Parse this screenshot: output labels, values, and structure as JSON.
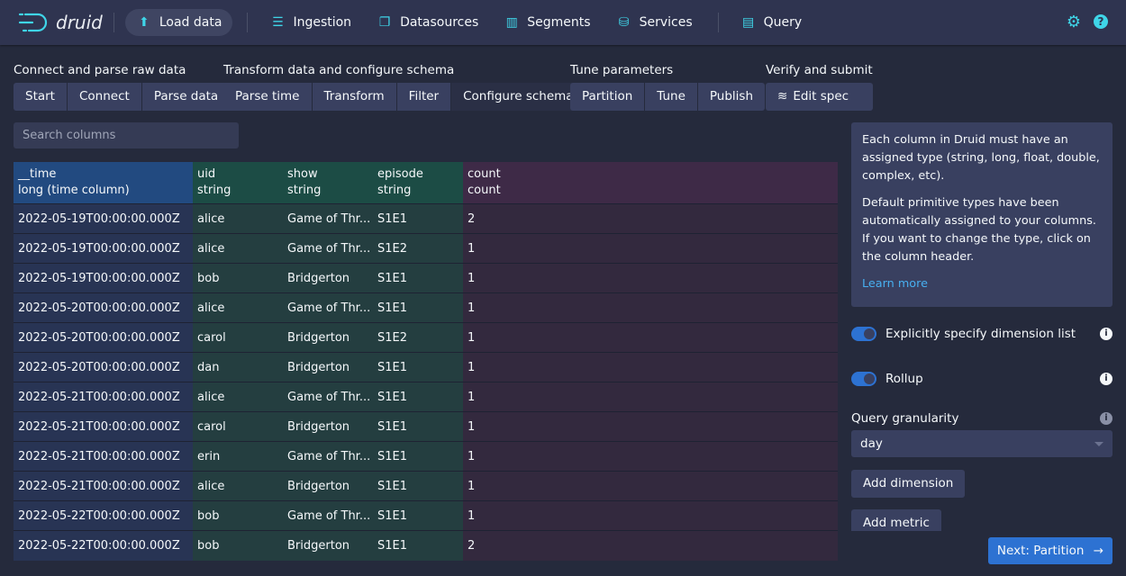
{
  "nav": {
    "logo": "druid",
    "items": [
      {
        "label": "Load data",
        "icon": "cloud-upload-icon",
        "active": true
      },
      {
        "label": "Ingestion",
        "icon": "gantt-chart-icon"
      },
      {
        "label": "Datasources",
        "icon": "multi-select-icon"
      },
      {
        "label": "Segments",
        "icon": "stacked-chart-icon"
      },
      {
        "label": "Services",
        "icon": "database-icon"
      },
      {
        "label": "Query",
        "icon": "application-icon"
      }
    ],
    "right_icons": [
      "cog-icon",
      "help-icon"
    ]
  },
  "steps": [
    {
      "title": "Connect and parse raw data",
      "buttons": [
        "Start",
        "Connect",
        "Parse data"
      ]
    },
    {
      "title": "Transform data and configure schema",
      "buttons": [
        "Parse time",
        "Transform",
        "Filter",
        "Configure schema"
      ],
      "selected": "Configure schema"
    },
    {
      "title": "Tune parameters",
      "buttons": [
        "Partition",
        "Tune",
        "Publish"
      ]
    },
    {
      "title": "Verify and submit",
      "buttons": [
        "Edit spec"
      ]
    }
  ],
  "search": {
    "placeholder": "Search columns"
  },
  "table": {
    "columns": [
      {
        "name": "__time",
        "type": "long (time column)"
      },
      {
        "name": "uid",
        "type": "string"
      },
      {
        "name": "show",
        "type": "string"
      },
      {
        "name": "episode",
        "type": "string"
      },
      {
        "name": "count",
        "type": "count"
      }
    ],
    "rows": [
      [
        "2022-05-19T00:00:00.000Z",
        "alice",
        "Game of Thr...",
        "S1E1",
        "2"
      ],
      [
        "2022-05-19T00:00:00.000Z",
        "alice",
        "Game of Thr...",
        "S1E2",
        "1"
      ],
      [
        "2022-05-19T00:00:00.000Z",
        "bob",
        "Bridgerton",
        "S1E1",
        "1"
      ],
      [
        "2022-05-20T00:00:00.000Z",
        "alice",
        "Game of Thr...",
        "S1E1",
        "1"
      ],
      [
        "2022-05-20T00:00:00.000Z",
        "carol",
        "Bridgerton",
        "S1E2",
        "1"
      ],
      [
        "2022-05-20T00:00:00.000Z",
        "dan",
        "Bridgerton",
        "S1E1",
        "1"
      ],
      [
        "2022-05-21T00:00:00.000Z",
        "alice",
        "Game of Thr...",
        "S1E1",
        "1"
      ],
      [
        "2022-05-21T00:00:00.000Z",
        "carol",
        "Bridgerton",
        "S1E1",
        "1"
      ],
      [
        "2022-05-21T00:00:00.000Z",
        "erin",
        "Game of Thr...",
        "S1E1",
        "1"
      ],
      [
        "2022-05-21T00:00:00.000Z",
        "alice",
        "Bridgerton",
        "S1E1",
        "1"
      ],
      [
        "2022-05-22T00:00:00.000Z",
        "bob",
        "Game of Thr...",
        "S1E1",
        "1"
      ],
      [
        "2022-05-22T00:00:00.000Z",
        "bob",
        "Bridgerton",
        "S1E1",
        "2"
      ]
    ]
  },
  "side": {
    "p1": "Each column in Druid must have an assigned type (string, long, float, double, complex, etc).",
    "p2": "Default primitive types have been automatically assigned to your columns. If you want to change the type, click on the column header.",
    "learn_more": "Learn more",
    "explicit_label": "Explicitly specify dimension list",
    "explicit_on": true,
    "rollup_label": "Rollup",
    "rollup_on": true,
    "granularity_label": "Query granularity",
    "granularity_value": "day",
    "add_dimension": "Add dimension",
    "add_metric": "Add metric",
    "next": "Next: Partition"
  }
}
